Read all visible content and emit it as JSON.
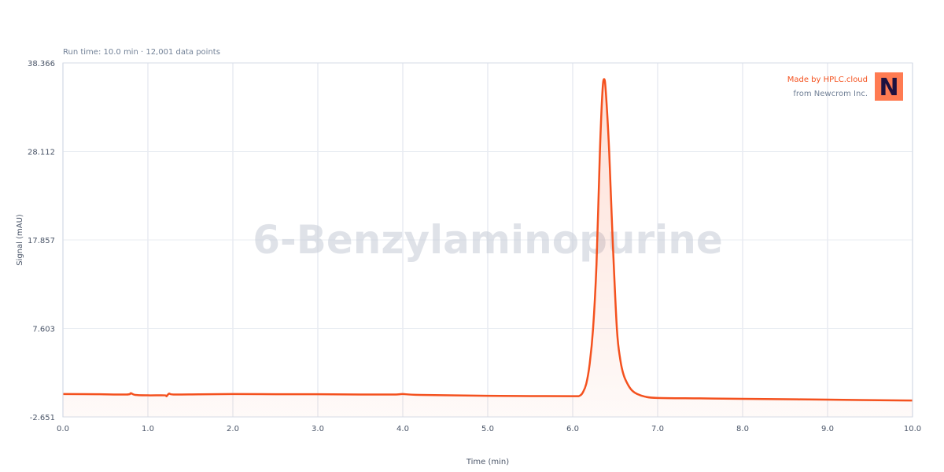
{
  "subtitle": "Run time: 10.0 min · 12,001 data points",
  "watermark": "6-Benzylaminopurine",
  "credit": {
    "line1": "Made by HPLC.cloud",
    "line2": "from Newcrom Inc.",
    "logo_letter": "N",
    "line1_color": "#f4511e",
    "logo_bg": "#ff7b52",
    "logo_fg": "#1e1240"
  },
  "chart_data": {
    "type": "area",
    "xlabel": "Time (min)",
    "ylabel": "Signal (mAU)",
    "xlim": [
      0,
      10
    ],
    "ylim": [
      -2.651,
      38.366
    ],
    "xticks": [
      "0.0",
      "1.0",
      "2.0",
      "3.0",
      "4.0",
      "5.0",
      "6.0",
      "7.0",
      "8.0",
      "9.0",
      "10.0"
    ],
    "yticks": [
      "-2.651",
      "7.603",
      "17.857",
      "28.112",
      "38.366"
    ],
    "grid": true,
    "line_color": "#f4511e",
    "series": [
      {
        "x": [
          0,
          0.4,
          0.75,
          0.8,
          0.85,
          1.0,
          1.2,
          1.22,
          1.25,
          1.3,
          1.6,
          2.0,
          2.5,
          3.0,
          3.5,
          3.9,
          4.0,
          4.2,
          5.0,
          5.5,
          6.0,
          6.08,
          6.12,
          6.16,
          6.2,
          6.24,
          6.28,
          6.32,
          6.35,
          6.37,
          6.39,
          6.43,
          6.47,
          6.52,
          6.56,
          6.6,
          6.65,
          6.7,
          6.76,
          6.85,
          7.0,
          7.5,
          8.0,
          9.0,
          10.0
        ],
        "y": [
          0.0,
          -0.02,
          -0.05,
          0.1,
          -0.1,
          -0.15,
          -0.15,
          -0.25,
          0.05,
          -0.05,
          -0.03,
          0.0,
          -0.02,
          -0.02,
          -0.05,
          -0.05,
          0.0,
          -0.1,
          -0.2,
          -0.23,
          -0.25,
          -0.2,
          0.2,
          1.2,
          3.5,
          7.6,
          15,
          28,
          35,
          36.5,
          35,
          28,
          18,
          7.6,
          4,
          2.2,
          1.1,
          0.4,
          0.0,
          -0.3,
          -0.45,
          -0.5,
          -0.55,
          -0.65,
          -0.75
        ]
      }
    ]
  }
}
